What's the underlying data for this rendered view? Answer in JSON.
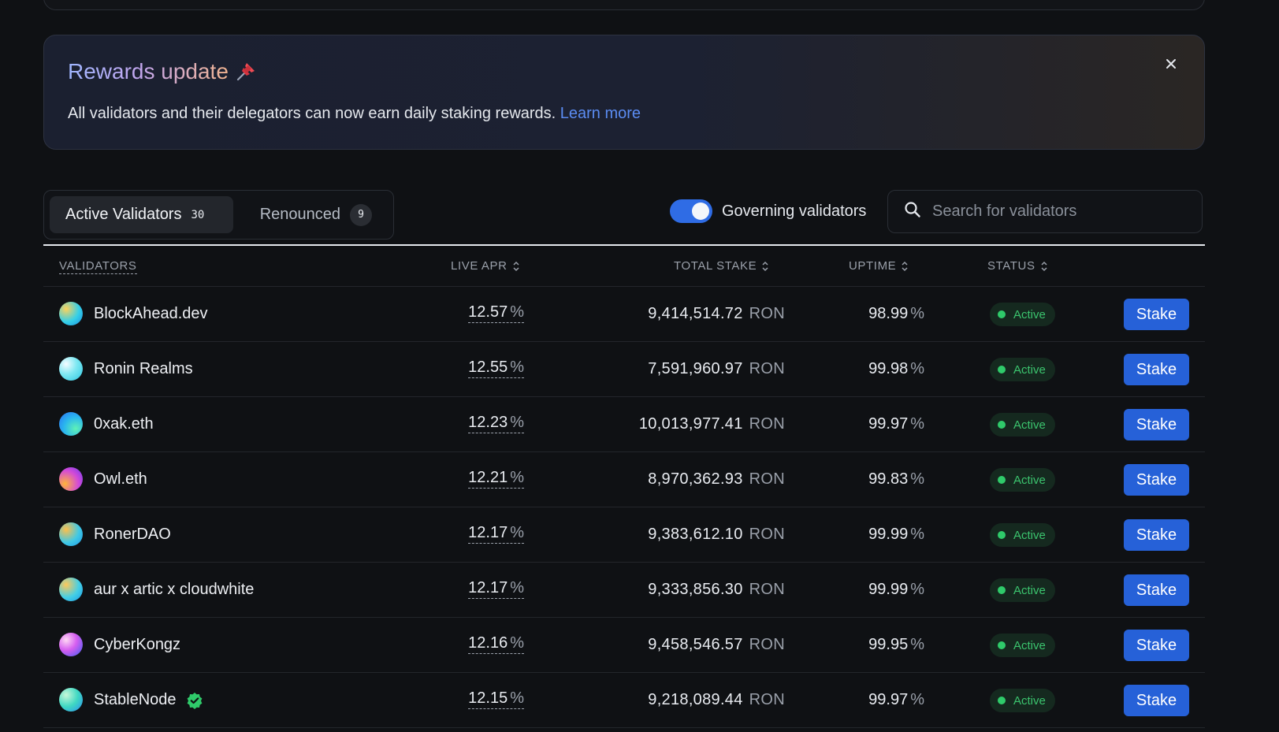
{
  "banner": {
    "title": "Rewards update",
    "pin_icon": "pushpin-icon",
    "body": "All validators and their delegators can now earn daily staking rewards.",
    "link": "Learn more",
    "close_icon": "close-icon"
  },
  "tabs": [
    {
      "label": "Active Validators",
      "count": "30"
    },
    {
      "label": "Renounced",
      "count": "9"
    }
  ],
  "toggle": {
    "label": "Governing validators",
    "on": true
  },
  "search": {
    "placeholder": "Search for validators",
    "value": ""
  },
  "table": {
    "headers": {
      "validators": "VALIDATORS",
      "apr": "LIVE APR",
      "stake": "TOTAL STAKE",
      "uptime": "UPTIME",
      "status": "STATUS"
    },
    "stake_label": "Stake",
    "unit": "RON",
    "pct": "%",
    "rows": [
      {
        "name": "BlockAhead.dev",
        "apr": "12.57",
        "stake": "9,414,514.72",
        "uptime": "98.99",
        "status": "Active",
        "verified": false
      },
      {
        "name": "Ronin Realms",
        "apr": "12.55",
        "stake": "7,591,960.97",
        "uptime": "99.98",
        "status": "Active",
        "verified": false
      },
      {
        "name": "0xak.eth",
        "apr": "12.23",
        "stake": "10,013,977.41",
        "uptime": "99.97",
        "status": "Active",
        "verified": false
      },
      {
        "name": "Owl.eth",
        "apr": "12.21",
        "stake": "8,970,362.93",
        "uptime": "99.83",
        "status": "Active",
        "verified": false
      },
      {
        "name": "RonerDAO",
        "apr": "12.17",
        "stake": "9,383,612.10",
        "uptime": "99.99",
        "status": "Active",
        "verified": false
      },
      {
        "name": "aur x artic x cloudwhite",
        "apr": "12.17",
        "stake": "9,333,856.30",
        "uptime": "99.99",
        "status": "Active",
        "verified": false
      },
      {
        "name": "CyberKongz",
        "apr": "12.16",
        "stake": "9,458,546.57",
        "uptime": "99.95",
        "status": "Active",
        "verified": false
      },
      {
        "name": "StableNode",
        "apr": "12.15",
        "stake": "9,218,089.44",
        "uptime": "99.97",
        "status": "Active",
        "verified": true
      }
    ]
  },
  "colors": {
    "accent": "#2661d8",
    "link": "#5b8cf2",
    "status_active": "#2fca6a",
    "background": "#0f1114"
  }
}
